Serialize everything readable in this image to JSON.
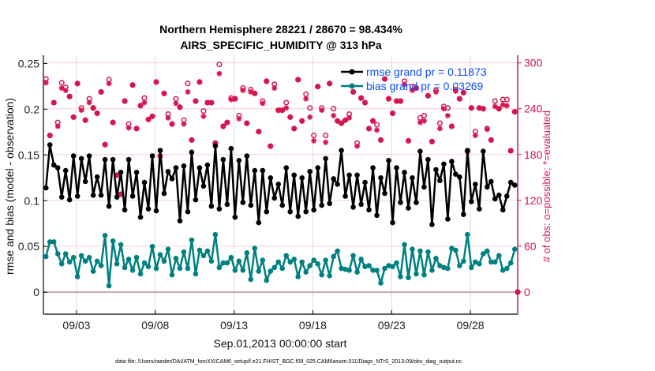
{
  "chart_data": {
    "type": "line",
    "title": [
      "Northern Hemisphere 28221 / 28670 = 98.434%",
      "AIRS_SPECIFIC_HUMIDITY @ 313 hPa"
    ],
    "xlabel": "Sep.01,2013 00:00:00 start",
    "ylabel": "rmse and bias (model - observation)",
    "y2label": "# of obs: o=possible; *=evaluated",
    "footer": "data file: /Users/raeder/DAI/ATM_forcXX/CAM6_setup/f.e21.FHIST_BGC.f09_025.CAM6assim.011/Diags_NTrS_2013-09/obs_diag_output.nc",
    "x_units": "days since 2013-09-01 00:00",
    "xlim": [
      -0.1,
      30
    ],
    "ylim": [
      -0.024,
      0.259
    ],
    "y2lim": [
      -29,
      310
    ],
    "x_ticks": [
      {
        "t": 2,
        "label": "09/03"
      },
      {
        "t": 7,
        "label": "09/08"
      },
      {
        "t": 12,
        "label": "09/13"
      },
      {
        "t": 17,
        "label": "09/18"
      },
      {
        "t": 22,
        "label": "09/23"
      },
      {
        "t": 27,
        "label": "09/28"
      }
    ],
    "y_ticks": [
      {
        "v": 0,
        "label": "0"
      },
      {
        "v": 0.05,
        "label": "0.05"
      },
      {
        "v": 0.1,
        "label": "0.1"
      },
      {
        "v": 0.15,
        "label": "0.15"
      },
      {
        "v": 0.2,
        "label": "0.2"
      },
      {
        "v": 0.25,
        "label": "0.25"
      }
    ],
    "y2_ticks": [
      {
        "v": 0,
        "label": "0"
      },
      {
        "v": 60,
        "label": "60"
      },
      {
        "v": 120,
        "label": "120"
      },
      {
        "v": 180,
        "label": "180"
      },
      {
        "v": 240,
        "label": "240"
      },
      {
        "v": 300,
        "label": "300"
      }
    ],
    "grid": true,
    "legend_position": "top-right",
    "t_start": 0.0625,
    "t_step": 0.25,
    "series": [
      {
        "name": "rmse grand pr = 0.11873",
        "color": "#000000",
        "values": [
          0.114,
          0.161,
          0.139,
          0.136,
          0.104,
          0.133,
          0.101,
          0.149,
          0.105,
          0.146,
          0.121,
          0.149,
          0.106,
          0.126,
          0.106,
          0.145,
          0.094,
          0.145,
          0.104,
          0.131,
          0.09,
          0.145,
          0.105,
          0.131,
          0.082,
          0.12,
          0.091,
          0.149,
          0.089,
          0.155,
          0.108,
          0.132,
          0.124,
          0.136,
          0.078,
          0.138,
          0.088,
          0.153,
          0.101,
          0.136,
          0.116,
          0.139,
          0.094,
          0.16,
          0.091,
          0.145,
          0.096,
          0.157,
          0.082,
          0.144,
          0.098,
          0.149,
          0.095,
          0.133,
          0.076,
          0.133,
          0.088,
          0.125,
          0.103,
          0.118,
          0.095,
          0.136,
          0.088,
          0.128,
          0.083,
          0.125,
          0.088,
          0.132,
          0.09,
          0.136,
          0.095,
          0.146,
          0.097,
          0.124,
          0.118,
          0.155,
          0.105,
          0.128,
          0.093,
          0.128,
          0.096,
          0.12,
          0.09,
          0.136,
          0.084,
          0.125,
          0.108,
          0.144,
          0.076,
          0.136,
          0.098,
          0.131,
          0.092,
          0.125,
          0.098,
          0.154,
          0.115,
          0.145,
          0.074,
          0.134,
          0.122,
          0.14,
          0.08,
          0.143,
          0.129,
          0.126,
          0.085,
          0.155,
          0.099,
          0.118,
          0.091,
          0.154,
          0.115,
          0.121,
          0.102,
          0.106,
          0.09,
          0.105,
          0.12,
          0.117
        ]
      },
      {
        "name": "bias grand pr = 0.03269",
        "color": "#008080",
        "values": [
          0.039,
          0.055,
          0.055,
          0.042,
          0.031,
          0.042,
          0.033,
          0.038,
          0.017,
          0.04,
          0.034,
          0.038,
          0.023,
          0.034,
          0.029,
          0.062,
          0.007,
          0.056,
          0.031,
          0.052,
          0.027,
          0.036,
          0.024,
          0.038,
          0.02,
          0.032,
          0.028,
          0.05,
          0.026,
          0.041,
          0.034,
          0.047,
          0.019,
          0.037,
          0.026,
          0.044,
          0.026,
          0.057,
          0.02,
          0.046,
          0.04,
          0.045,
          0.034,
          0.063,
          0.027,
          0.032,
          0.032,
          0.038,
          0.024,
          0.034,
          0.024,
          0.043,
          0.014,
          0.048,
          0.023,
          0.035,
          0.013,
          0.023,
          0.027,
          0.033,
          0.026,
          0.04,
          0.033,
          0.036,
          0.017,
          0.033,
          0.022,
          0.029,
          0.035,
          0.031,
          0.019,
          0.035,
          0.018,
          0.039,
          0.045,
          0.026,
          0.025,
          0.024,
          0.04,
          0.022,
          0.036,
          0.028,
          0.029,
          0.024,
          0.024,
          0.01,
          0.026,
          0.029,
          0.028,
          0.032,
          0.017,
          0.052,
          0.016,
          0.047,
          0.02,
          0.045,
          0.019,
          0.044,
          0.024,
          0.037,
          0.029,
          0.027,
          0.026,
          0.048,
          0.046,
          0.029,
          0.034,
          0.063,
          0.027,
          0.033,
          0.031,
          0.042,
          0.045,
          0.033,
          0.033,
          0.04,
          0.024,
          0.026,
          0.032,
          0.047
        ]
      }
    ],
    "obs_color": "#d6154f",
    "obs_possible": [
      279,
      205,
      248,
      222,
      274,
      268,
      256,
      229,
      273,
      241,
      225,
      253,
      241,
      234,
      262,
      193,
      278,
      222,
      153,
      128,
      250,
      220,
      271,
      214,
      244,
      254,
      226,
      230,
      275,
      178,
      260,
      233,
      220,
      253,
      242,
      225,
      273,
      199,
      250,
      275,
      237,
      248,
      248,
      195,
      298,
      217,
      222,
      254,
      253,
      231,
      267,
      221,
      265,
      260,
      210,
      250,
      276,
      191,
      272,
      238,
      238,
      248,
      229,
      214,
      278,
      224,
      259,
      241,
      205,
      269,
      241,
      205,
      273,
      240,
      224,
      221,
      225,
      233,
      262,
      195,
      254,
      248,
      214,
      224,
      219,
      199,
      279,
      253,
      234,
      250,
      250,
      276,
      198,
      269,
      267,
      228,
      231,
      257,
      197,
      264,
      221,
      243,
      241,
      217,
      265,
      253,
      261,
      184,
      241,
      210,
      241,
      240,
      214,
      199,
      250,
      240,
      252,
      252,
      185,
      236,
      0
    ],
    "obs_evaluated": [
      274,
      205,
      248,
      217,
      267,
      264,
      256,
      229,
      273,
      238,
      225,
      248,
      241,
      234,
      262,
      193,
      273,
      222,
      153,
      128,
      250,
      215,
      271,
      214,
      244,
      248,
      226,
      230,
      275,
      178,
      260,
      228,
      220,
      247,
      242,
      220,
      262,
      199,
      250,
      275,
      230,
      248,
      248,
      195,
      286,
      217,
      222,
      252,
      253,
      227,
      264,
      221,
      262,
      260,
      210,
      247,
      276,
      191,
      267,
      238,
      238,
      241,
      229,
      214,
      278,
      224,
      253,
      229,
      198,
      269,
      238,
      196,
      273,
      231,
      224,
      221,
      225,
      228,
      262,
      191,
      254,
      248,
      214,
      224,
      212,
      199,
      279,
      253,
      234,
      250,
      250,
      272,
      198,
      264,
      267,
      222,
      224,
      257,
      197,
      262,
      214,
      240,
      231,
      217,
      263,
      253,
      261,
      184,
      241,
      205,
      241,
      240,
      213,
      199,
      243,
      240,
      245,
      244,
      185,
      236,
      0
    ],
    "obs_last_t": 30
  }
}
